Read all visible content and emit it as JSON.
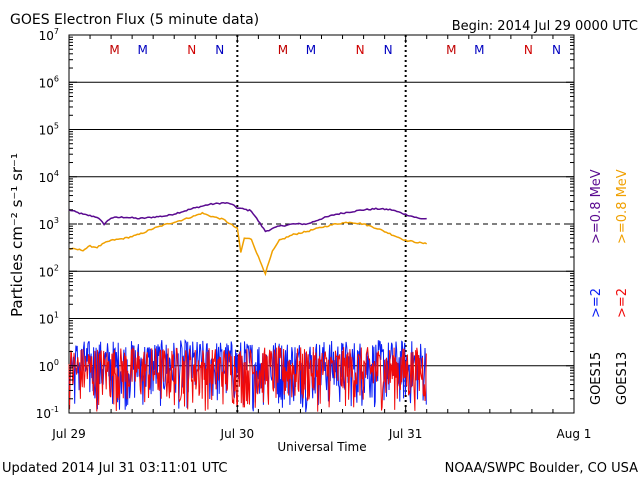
{
  "header": {
    "title": "GOES Electron Flux (5 minute data)",
    "begin": "Begin: 2014 Jul 29 0000 UTC"
  },
  "footer": {
    "updated": "Updated 2014 Jul 31 03:11:01 UTC",
    "credit": "NOAA/SWPC Boulder, CO USA"
  },
  "colors": {
    "mev08_goes15": "#5a0a90",
    "mev08_goes13": "#f0a000",
    "mev2_goes15": "#0a1ef5",
    "mev2_goes13": "#f00a0a",
    "marker_M": "#c00000",
    "marker_N_red": "#d00000",
    "marker_N_blue": "#0000c0"
  },
  "chart_data": {
    "type": "line",
    "title": "GOES Electron Flux (5 minute data)",
    "xlabel": "Universal Time",
    "ylabel": "Particles cm⁻² s⁻¹ sr⁻¹",
    "yscale": "log",
    "ylim": [
      0.1,
      10000000
    ],
    "xlim": [
      "2014-07-29 00:00",
      "2014-08-01 00:00"
    ],
    "grid": "horizontal decades",
    "x_tick_labels": [
      "Jul 29",
      "Jul 30",
      "Jul 31",
      "Aug 1"
    ],
    "y_ticks": [
      {
        "value": 0.1,
        "base": "10",
        "exp": "-1"
      },
      {
        "value": 1,
        "base": "10",
        "exp": "0"
      },
      {
        "value": 10,
        "base": "10",
        "exp": "1"
      },
      {
        "value": 100,
        "base": "10",
        "exp": "2"
      },
      {
        "value": 1000,
        "base": "10",
        "exp": "3"
      },
      {
        "value": 10000,
        "base": "10",
        "exp": "4"
      },
      {
        "value": 100000,
        "base": "10",
        "exp": "5"
      },
      {
        "value": 1000000,
        "base": "10",
        "exp": "6"
      },
      {
        "value": 10000000,
        "base": "10",
        "exp": "7"
      }
    ],
    "reference_line": {
      "value": 1000,
      "style": "dashed"
    },
    "day_markers": [
      {
        "day": 0,
        "labels": [
          {
            "text": "M",
            "hour": 6.5,
            "color": "#c00000"
          },
          {
            "text": "M",
            "hour": 10.5,
            "color": "#0000c0"
          },
          {
            "text": "N",
            "hour": 17.5,
            "color": "#d00000"
          },
          {
            "text": "N",
            "hour": 21.5,
            "color": "#0000c0"
          }
        ]
      },
      {
        "day": 1,
        "labels": [
          {
            "text": "M",
            "hour": 6.5,
            "color": "#c00000"
          },
          {
            "text": "M",
            "hour": 10.5,
            "color": "#0000c0"
          },
          {
            "text": "N",
            "hour": 17.5,
            "color": "#d00000"
          },
          {
            "text": "N",
            "hour": 21.5,
            "color": "#0000c0"
          }
        ]
      },
      {
        "day": 2,
        "labels": [
          {
            "text": "M",
            "hour": 6.5,
            "color": "#c00000"
          },
          {
            "text": "M",
            "hour": 10.5,
            "color": "#0000c0"
          },
          {
            "text": "N",
            "hour": 17.5,
            "color": "#d00000"
          },
          {
            "text": "N",
            "hour": 21.5,
            "color": "#0000c0"
          }
        ]
      }
    ],
    "series": [
      {
        "name": "GOES15 >=0.8 MeV",
        "color": "#5a0a90",
        "x_hours": [
          0,
          2,
          4,
          5,
          6,
          8,
          10,
          12,
          14,
          16,
          18,
          20,
          22,
          23,
          24,
          26,
          28,
          30,
          32,
          34,
          36,
          38,
          40,
          42,
          44,
          46,
          48,
          50,
          51
        ],
        "y": [
          2000,
          1600,
          1400,
          1000,
          1350,
          1400,
          1300,
          1400,
          1500,
          1800,
          2200,
          2600,
          2800,
          2700,
          2200,
          1900,
          700,
          900,
          1000,
          1000,
          1300,
          1600,
          1800,
          2000,
          2100,
          2000,
          1600,
          1300,
          1300
        ]
      },
      {
        "name": "GOES13 >=0.8 MeV",
        "color": "#f0a000",
        "x_hours": [
          0,
          1,
          2,
          3,
          4,
          5,
          6,
          8,
          10,
          12,
          14,
          16,
          18,
          19,
          20,
          22,
          23,
          24,
          24.5,
          25,
          26,
          27,
          28,
          29,
          30,
          32,
          34,
          36,
          38,
          40,
          42,
          44,
          46,
          48,
          50,
          51
        ],
        "y": [
          300,
          290,
          280,
          340,
          320,
          390,
          450,
          500,
          600,
          800,
          1000,
          1200,
          1500,
          1700,
          1500,
          1250,
          1000,
          800,
          250,
          500,
          480,
          200,
          90,
          260,
          450,
          600,
          700,
          850,
          1000,
          1100,
          1000,
          800,
          600,
          450,
          400,
          380
        ]
      },
      {
        "name": "GOES15 >=2 MeV",
        "color": "#0a1ef5",
        "x_hours": [
          0,
          51
        ],
        "y_range": [
          0.1,
          3.5
        ],
        "note_style": "noisy"
      },
      {
        "name": "GOES13 >=2 MeV",
        "color": "#f00a0a",
        "x_hours": [
          0,
          51
        ],
        "y_range": [
          0.1,
          2.5
        ],
        "note_style": "noisy"
      }
    ],
    "legend": {
      "placement": "right",
      "groups": [
        {
          "label": "GOES15",
          "mev08": ">=0.8 MeV",
          "mev2": ">=2"
        },
        {
          "label": "GOES13",
          "mev08": ">=0.8 MeV",
          "mev2": ">=2"
        }
      ]
    }
  }
}
